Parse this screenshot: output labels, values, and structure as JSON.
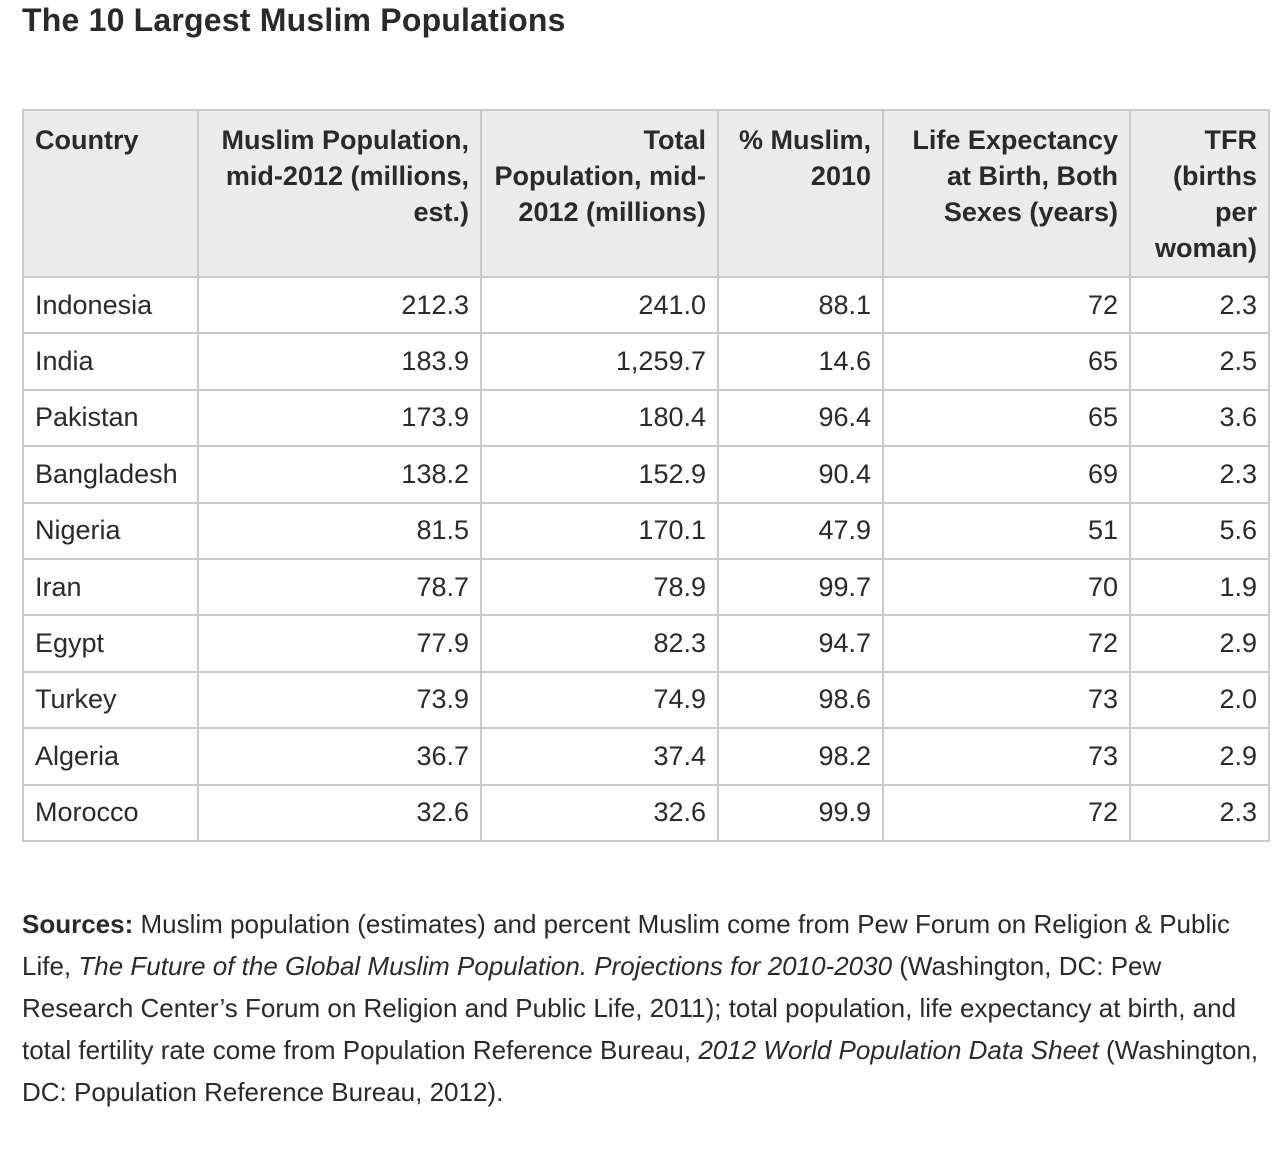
{
  "title": "The 10 Largest Muslim Populations",
  "table": {
    "headers": [
      "Country",
      "Muslim Population, mid-2012 (millions, est.)",
      "Total Population, mid-2012 (millions)",
      "% Muslim, 2010",
      "Life Expectancy at Birth, Both Sexes (years)",
      "TFR (births per woman)"
    ],
    "rows": [
      [
        "Indonesia",
        "212.3",
        "241.0",
        "88.1",
        "72",
        "2.3"
      ],
      [
        "India",
        "183.9",
        "1,259.7",
        "14.6",
        "65",
        "2.5"
      ],
      [
        "Pakistan",
        "173.9",
        "180.4",
        "96.4",
        "65",
        "3.6"
      ],
      [
        "Bangladesh",
        "138.2",
        "152.9",
        "90.4",
        "69",
        "2.3"
      ],
      [
        "Nigeria",
        "81.5",
        "170.1",
        "47.9",
        "51",
        "5.6"
      ],
      [
        "Iran",
        "78.7",
        "78.9",
        "99.7",
        "70",
        "1.9"
      ],
      [
        "Egypt",
        "77.9",
        "82.3",
        "94.7",
        "72",
        "2.9"
      ],
      [
        "Turkey",
        "73.9",
        "74.9",
        "98.6",
        "73",
        "2.0"
      ],
      [
        "Algeria",
        "36.7",
        "37.4",
        "98.2",
        "73",
        "2.9"
      ],
      [
        "Morocco",
        "32.6",
        "32.6",
        "99.9",
        "72",
        "2.3"
      ]
    ]
  },
  "sources": {
    "label": "Sources:",
    "text1": " Muslim population (estimates) and percent Muslim come from Pew Forum on Religion & Public Life, ",
    "title1": "The Future of the Global Muslim Population. Projections for 2010-2030",
    "text2": " (Washington, DC: Pew Research Center’s Forum on Religion and Public Life, 2011); total population, life expectancy at birth, and total fertility rate come from Population Reference Bureau, ",
    "title2": "2012 World Population Data Sheet",
    "text3": " (Washington, DC: Population Reference Bureau, 2012)."
  }
}
